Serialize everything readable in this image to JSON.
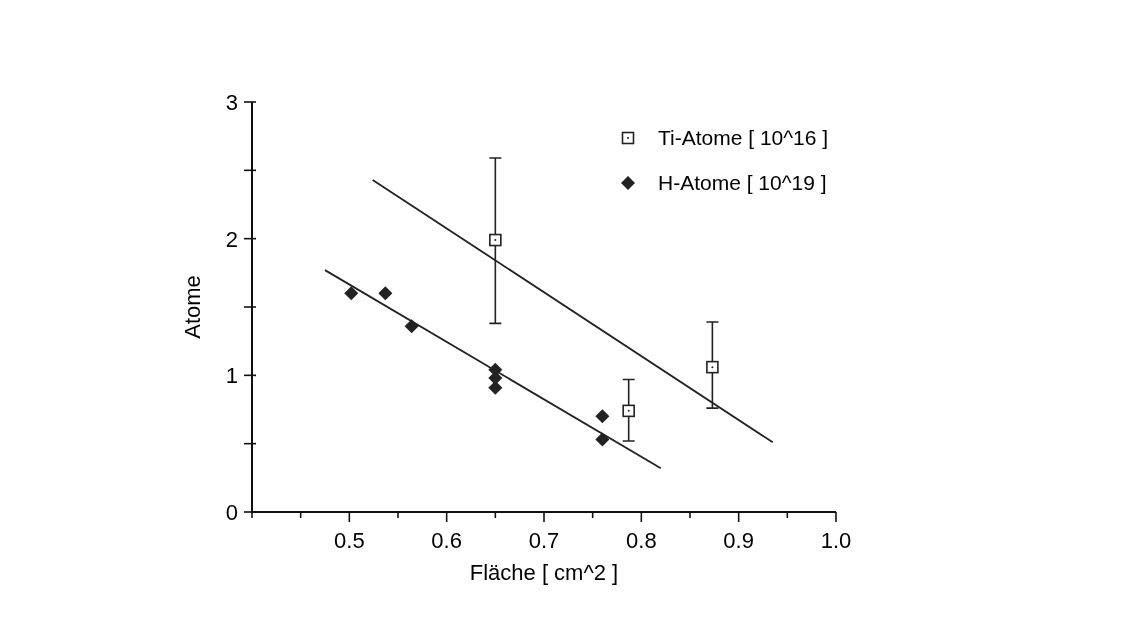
{
  "chart_data": {
    "type": "scatter",
    "xlabel": "Fläche [ cm^2 ]",
    "ylabel": "Atome",
    "xlim": [
      0.4,
      1.0
    ],
    "xticks": [
      {
        "value": 0.4,
        "label": null
      },
      {
        "value": 0.45,
        "label": null
      },
      0.5,
      {
        "value": 0.55,
        "label": null
      },
      0.6,
      {
        "value": 0.65,
        "label": null
      },
      0.7,
      {
        "value": 0.75,
        "label": null
      },
      0.8,
      {
        "value": 0.85,
        "label": null
      },
      0.9,
      {
        "value": 0.95,
        "label": null
      },
      {
        "value": 1,
        "label": "1.0"
      }
    ],
    "ylim": [
      0,
      3
    ],
    "yticks": [
      0,
      {
        "value": 0.5,
        "label": null
      },
      1,
      {
        "value": 1.5,
        "label": null
      },
      2,
      {
        "value": 2.5,
        "label": null
      },
      3
    ],
    "grid": false,
    "legend": "top right",
    "series": [
      {
        "name": "Ti-Atome [ 10^16 ]",
        "color": "#222222",
        "marker": "square",
        "x": [
          0.65,
          0.787,
          0.873
        ],
        "values": [
          1.99,
          0.74,
          1.06
        ],
        "errors": [
          [
            1.38,
            2.59
          ],
          [
            0.52,
            0.97
          ],
          [
            0.76,
            1.39
          ]
        ]
      },
      {
        "name": "H-Atome [ 10^19 ]",
        "color": "#222222",
        "marker": "diamond",
        "x": [
          0.502,
          0.537,
          0.564,
          0.65,
          0.65,
          0.65,
          0.76,
          0.76
        ],
        "values": [
          1.6,
          1.6,
          1.36,
          1.04,
          0.98,
          0.91,
          0.7,
          0.53
        ]
      },
      {
        "type": "line",
        "color": "#222222",
        "marker": "none",
        "x": [
          0.524,
          0.935
        ],
        "values": [
          2.43,
          0.51
        ]
      },
      {
        "type": "line",
        "color": "#222222",
        "marker": "none",
        "x": [
          0.475,
          0.82
        ],
        "values": [
          1.77,
          0.32
        ]
      }
    ]
  }
}
